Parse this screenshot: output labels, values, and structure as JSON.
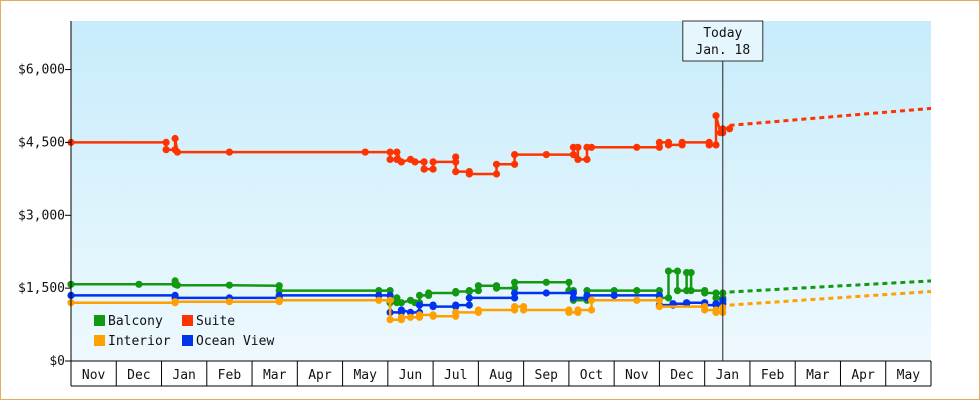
{
  "chart_data": {
    "type": "line",
    "y_tick_labels": [
      "$0",
      "$1,500",
      "$3,000",
      "$4,500",
      "$6,000"
    ],
    "y_ticks": [
      0,
      1500,
      3000,
      4500,
      6000
    ],
    "ylim": [
      0,
      7000
    ],
    "x_tick_labels": [
      "Nov",
      "Dec",
      "Jan",
      "Feb",
      "Mar",
      "Apr",
      "May",
      "Jun",
      "Jul",
      "Aug",
      "Sep",
      "Oct",
      "Nov",
      "Dec",
      "Jan",
      "Feb",
      "Mar",
      "Apr",
      "May"
    ],
    "xlim": [
      0,
      19
    ],
    "today_marker": {
      "line1": "Today",
      "line2": "Jan. 18",
      "x": 14.4
    },
    "legend_location": "bottom-left",
    "grid": false,
    "series": [
      {
        "name": "Suite",
        "color": "#ff3300",
        "points": [
          [
            0,
            4500
          ],
          [
            2.1,
            4500
          ],
          [
            2.1,
            4350
          ],
          [
            2.3,
            4350
          ],
          [
            2.3,
            4580
          ],
          [
            2.35,
            4300
          ],
          [
            3.5,
            4300
          ],
          [
            6.5,
            4300
          ],
          [
            7.05,
            4300
          ],
          [
            7.05,
            4150
          ],
          [
            7.2,
            4150
          ],
          [
            7.2,
            4300
          ],
          [
            7.3,
            4100
          ],
          [
            7.5,
            4150
          ],
          [
            7.6,
            4100
          ],
          [
            7.8,
            4100
          ],
          [
            7.8,
            3950
          ],
          [
            8.0,
            3950
          ],
          [
            8.0,
            4100
          ],
          [
            8.5,
            4100
          ],
          [
            8.5,
            4200
          ],
          [
            8.5,
            3900
          ],
          [
            8.8,
            3900
          ],
          [
            8.8,
            3850
          ],
          [
            9.4,
            3850
          ],
          [
            9.4,
            4050
          ],
          [
            9.8,
            4050
          ],
          [
            9.8,
            4250
          ],
          [
            10.5,
            4250
          ],
          [
            11.1,
            4250
          ],
          [
            11.1,
            4400
          ],
          [
            11.2,
            4400
          ],
          [
            11.2,
            4150
          ],
          [
            11.4,
            4150
          ],
          [
            11.4,
            4400
          ],
          [
            11.5,
            4400
          ],
          [
            12.5,
            4400
          ],
          [
            13.0,
            4400
          ],
          [
            13.0,
            4500
          ],
          [
            13.2,
            4500
          ],
          [
            13.2,
            4450
          ],
          [
            13.5,
            4450
          ],
          [
            13.5,
            4500
          ],
          [
            14.1,
            4500
          ],
          [
            14.1,
            4450
          ],
          [
            14.25,
            4450
          ],
          [
            14.25,
            5050
          ],
          [
            14.35,
            4700
          ],
          [
            14.4,
            4700
          ],
          [
            14.4,
            4780
          ],
          [
            14.55,
            4780
          ]
        ],
        "projection": [
          [
            14.55,
            4850
          ],
          [
            19,
            5200
          ]
        ]
      },
      {
        "name": "Balcony",
        "color": "#119911",
        "points": [
          [
            0,
            1580
          ],
          [
            1.5,
            1580
          ],
          [
            2.3,
            1580
          ],
          [
            2.3,
            1650
          ],
          [
            2.35,
            1560
          ],
          [
            3.5,
            1560
          ],
          [
            4.6,
            1550
          ],
          [
            4.6,
            1450
          ],
          [
            6.8,
            1450
          ],
          [
            7.05,
            1450
          ],
          [
            7.05,
            1200
          ],
          [
            7.2,
            1200
          ],
          [
            7.2,
            1300
          ],
          [
            7.3,
            1200
          ],
          [
            7.5,
            1250
          ],
          [
            7.6,
            1200
          ],
          [
            7.7,
            1200
          ],
          [
            7.7,
            1350
          ],
          [
            7.9,
            1350
          ],
          [
            7.9,
            1400
          ],
          [
            8.5,
            1400
          ],
          [
            8.5,
            1430
          ],
          [
            8.8,
            1430
          ],
          [
            8.8,
            1450
          ],
          [
            9.0,
            1450
          ],
          [
            9.0,
            1550
          ],
          [
            9.4,
            1550
          ],
          [
            9.4,
            1500
          ],
          [
            9.8,
            1500
          ],
          [
            9.8,
            1620
          ],
          [
            10.5,
            1620
          ],
          [
            11.0,
            1620
          ],
          [
            11.0,
            1450
          ],
          [
            11.1,
            1450
          ],
          [
            11.1,
            1250
          ],
          [
            11.4,
            1250
          ],
          [
            11.4,
            1450
          ],
          [
            12.0,
            1450
          ],
          [
            12.5,
            1450
          ],
          [
            13.0,
            1450
          ],
          [
            13.0,
            1300
          ],
          [
            13.2,
            1300
          ],
          [
            13.2,
            1850
          ],
          [
            13.4,
            1850
          ],
          [
            13.4,
            1450
          ],
          [
            13.6,
            1450
          ],
          [
            13.6,
            1820
          ],
          [
            13.7,
            1820
          ],
          [
            13.7,
            1450
          ],
          [
            14.0,
            1450
          ],
          [
            14.0,
            1400
          ],
          [
            14.25,
            1400
          ],
          [
            14.25,
            1300
          ],
          [
            14.4,
            1300
          ],
          [
            14.4,
            1400
          ]
        ],
        "projection": [
          [
            14.55,
            1420
          ],
          [
            19,
            1650
          ]
        ]
      },
      {
        "name": "Ocean View",
        "color": "#0033ee",
        "points": [
          [
            0,
            1350
          ],
          [
            2.3,
            1350
          ],
          [
            2.3,
            1300
          ],
          [
            3.5,
            1300
          ],
          [
            4.6,
            1300
          ],
          [
            4.6,
            1350
          ],
          [
            6.8,
            1350
          ],
          [
            7.05,
            1350
          ],
          [
            7.05,
            1000
          ],
          [
            7.3,
            1000
          ],
          [
            7.3,
            1050
          ],
          [
            7.5,
            1000
          ],
          [
            7.7,
            1000
          ],
          [
            7.7,
            1150
          ],
          [
            8.0,
            1150
          ],
          [
            8.0,
            1120
          ],
          [
            8.5,
            1120
          ],
          [
            8.5,
            1150
          ],
          [
            8.8,
            1150
          ],
          [
            8.8,
            1300
          ],
          [
            9.8,
            1300
          ],
          [
            9.8,
            1400
          ],
          [
            10.5,
            1400
          ],
          [
            11.1,
            1400
          ],
          [
            11.1,
            1300
          ],
          [
            11.4,
            1300
          ],
          [
            11.4,
            1350
          ],
          [
            12.0,
            1350
          ],
          [
            13.0,
            1350
          ],
          [
            13.0,
            1150
          ],
          [
            13.3,
            1150
          ],
          [
            13.3,
            1180
          ],
          [
            13.6,
            1180
          ],
          [
            13.6,
            1200
          ],
          [
            14.0,
            1200
          ],
          [
            14.0,
            1150
          ],
          [
            14.25,
            1150
          ],
          [
            14.25,
            1180
          ],
          [
            14.4,
            1180
          ],
          [
            14.4,
            1250
          ]
        ],
        "projection": []
      },
      {
        "name": "Interior",
        "color": "#ff9f00",
        "points": [
          [
            0,
            1200
          ],
          [
            2.3,
            1200
          ],
          [
            2.3,
            1220
          ],
          [
            3.5,
            1220
          ],
          [
            4.6,
            1220
          ],
          [
            4.6,
            1250
          ],
          [
            6.8,
            1250
          ],
          [
            7.05,
            1250
          ],
          [
            7.05,
            850
          ],
          [
            7.3,
            850
          ],
          [
            7.3,
            900
          ],
          [
            7.5,
            900
          ],
          [
            7.7,
            900
          ],
          [
            7.7,
            950
          ],
          [
            8.0,
            950
          ],
          [
            8.0,
            920
          ],
          [
            8.5,
            920
          ],
          [
            8.5,
            1000
          ],
          [
            9.0,
            1000
          ],
          [
            9.0,
            1050
          ],
          [
            9.8,
            1050
          ],
          [
            9.8,
            1120
          ],
          [
            10.0,
            1120
          ],
          [
            10.0,
            1050
          ],
          [
            11.0,
            1050
          ],
          [
            11.0,
            1000
          ],
          [
            11.2,
            1000
          ],
          [
            11.2,
            1050
          ],
          [
            11.5,
            1050
          ],
          [
            11.5,
            1250
          ],
          [
            12.5,
            1250
          ],
          [
            13.0,
            1250
          ],
          [
            13.0,
            1120
          ],
          [
            14.0,
            1120
          ],
          [
            14.0,
            1050
          ],
          [
            14.25,
            1050
          ],
          [
            14.25,
            1000
          ],
          [
            14.4,
            1000
          ],
          [
            14.4,
            1100
          ]
        ],
        "projection": [
          [
            14.55,
            1150
          ],
          [
            19,
            1430
          ]
        ]
      }
    ],
    "legend": [
      {
        "label": "Balcony",
        "color": "#119911"
      },
      {
        "label": "Suite",
        "color": "#ff3300"
      },
      {
        "label": "Interior",
        "color": "#ff9f00"
      },
      {
        "label": "Ocean View",
        "color": "#0033ee"
      }
    ]
  }
}
